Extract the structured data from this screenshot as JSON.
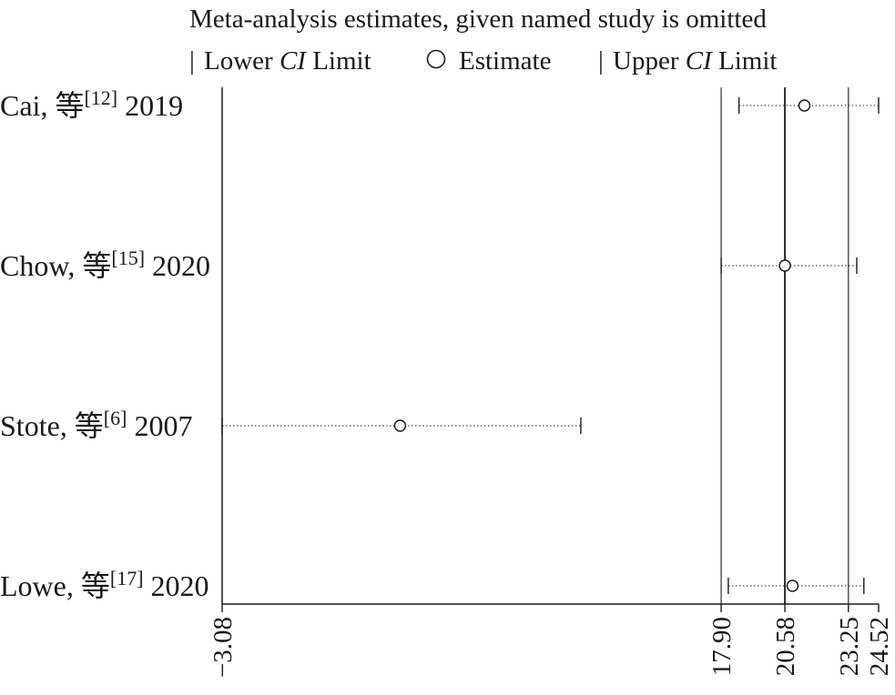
{
  "chart_data": {
    "type": "forest",
    "title": "Meta-analysis estimates, given named study is omitted",
    "legend": {
      "lower_symbol": "|",
      "lower_label": "Lower",
      "lower_ci": "CI",
      "lower_limit": "Limit",
      "estimate_label": "Estimate",
      "upper_symbol": "|",
      "upper_label": "Upper",
      "upper_ci": "CI",
      "upper_limit": "Limit"
    },
    "xlim": [
      -3.08,
      24.52
    ],
    "ticks": [
      -3.08,
      17.9,
      20.58,
      23.25,
      24.52
    ],
    "tick_labels": [
      "−3.08",
      "17.90",
      "20.58",
      "23.25",
      "24.52"
    ],
    "reference_lines": [
      17.9,
      20.58,
      23.25
    ],
    "studies": [
      {
        "author": "Cai, 等",
        "ref": "[12]",
        "year": "2019",
        "lower": 18.65,
        "estimate": 21.4,
        "upper": 24.52
      },
      {
        "author": "Chow, 等",
        "ref": "[15]",
        "year": "2020",
        "lower": 17.9,
        "estimate": 20.58,
        "upper": 23.6
      },
      {
        "author": "Stote, 等",
        "ref": "[6]",
        "year": "2007",
        "lower": -3.08,
        "estimate": 4.4,
        "upper": 12.0
      },
      {
        "author": "Lowe, 等",
        "ref": "[17]",
        "year": "2020",
        "lower": 18.2,
        "estimate": 20.9,
        "upper": 23.9
      }
    ]
  }
}
